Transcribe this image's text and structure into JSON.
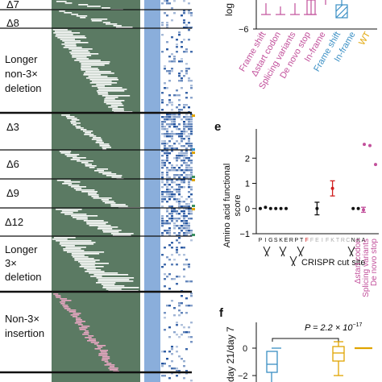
{
  "colors": {
    "green": "#5b7a63",
    "blue_strip": "#8aaedb",
    "pink": "#c2509b",
    "teal": "#3a8fc4",
    "orange": "#e0a400",
    "red": "#d02020",
    "heat_dark": "#1d4f9c"
  },
  "panel_d": {
    "row_labels": [
      "Δ7",
      "Δ8",
      "Longer",
      "non-3×",
      "deletion",
      "Δ3",
      "Δ6",
      "Δ9",
      "Δ12",
      "Longer",
      "3×",
      "deletion",
      "Non-3×",
      "insertion"
    ]
  },
  "panel_top": {
    "y_axis_label": "log",
    "y_tick": "−6",
    "categories": [
      {
        "label": "Frame shift",
        "color": "#c2509b"
      },
      {
        "label": "Δstart codon",
        "color": "#c2509b"
      },
      {
        "label": "Splicing variants",
        "color": "#c2509b"
      },
      {
        "label": "De novo stop",
        "color": "#c2509b"
      },
      {
        "label": "In-frame",
        "color": "#c2509b"
      },
      {
        "label": "Frame shift",
        "color": "#3a8fc4"
      },
      {
        "label": "In-frame",
        "color": "#3a8fc4"
      },
      {
        "label": "WT",
        "color": "#e0a400"
      }
    ]
  },
  "panel_e": {
    "letter": "e",
    "y_label_1": "Amino acid functional",
    "y_label_2": "score",
    "y_ticks": [
      "2",
      "1",
      "0",
      "−1"
    ],
    "residues": [
      "P",
      "I",
      "G",
      "S",
      "K",
      "E",
      "R",
      "P",
      "T",
      "F",
      "F",
      "E",
      "I",
      "F",
      "K",
      "T",
      "R",
      "C",
      "N",
      "K",
      "A"
    ],
    "cut_site_label": "CRISPR cut site",
    "extra_labels": [
      "Δstart codon",
      "Splicing variants",
      "De novo stop"
    ],
    "chart_data": {
      "type": "scatter",
      "ylim": [
        -1,
        3
      ],
      "points": [
        {
          "x": "P",
          "y": 0.0
        },
        {
          "x": "I",
          "y": 0.05
        },
        {
          "x": "G",
          "y": 0.0
        },
        {
          "x": "S",
          "y": 0.0
        },
        {
          "x": "K",
          "y": 0.0
        },
        {
          "x": "E",
          "y": 0.0
        },
        {
          "x": "F",
          "y": 0.8,
          "err": 0.3,
          "highlight": true
        },
        {
          "x": "F",
          "y": 0.0,
          "err": 0.25
        },
        {
          "x": "N",
          "y": 0.0
        },
        {
          "x": "K",
          "y": 0.0
        },
        {
          "x": "A",
          "y": -0.05,
          "err": 0.1
        },
        {
          "x": "Δstart codon",
          "y": 2.55
        },
        {
          "x": "Splicing variants",
          "y": 2.5
        },
        {
          "x": "De novo stop",
          "y": 1.75
        }
      ]
    }
  },
  "panel_f": {
    "letter": "f",
    "y_label": "day 21/day 7",
    "y_ticks": [
      "0",
      "−2"
    ],
    "p_value_prefix": "P = 2.2 × 10",
    "p_value_exp": "−17"
  }
}
